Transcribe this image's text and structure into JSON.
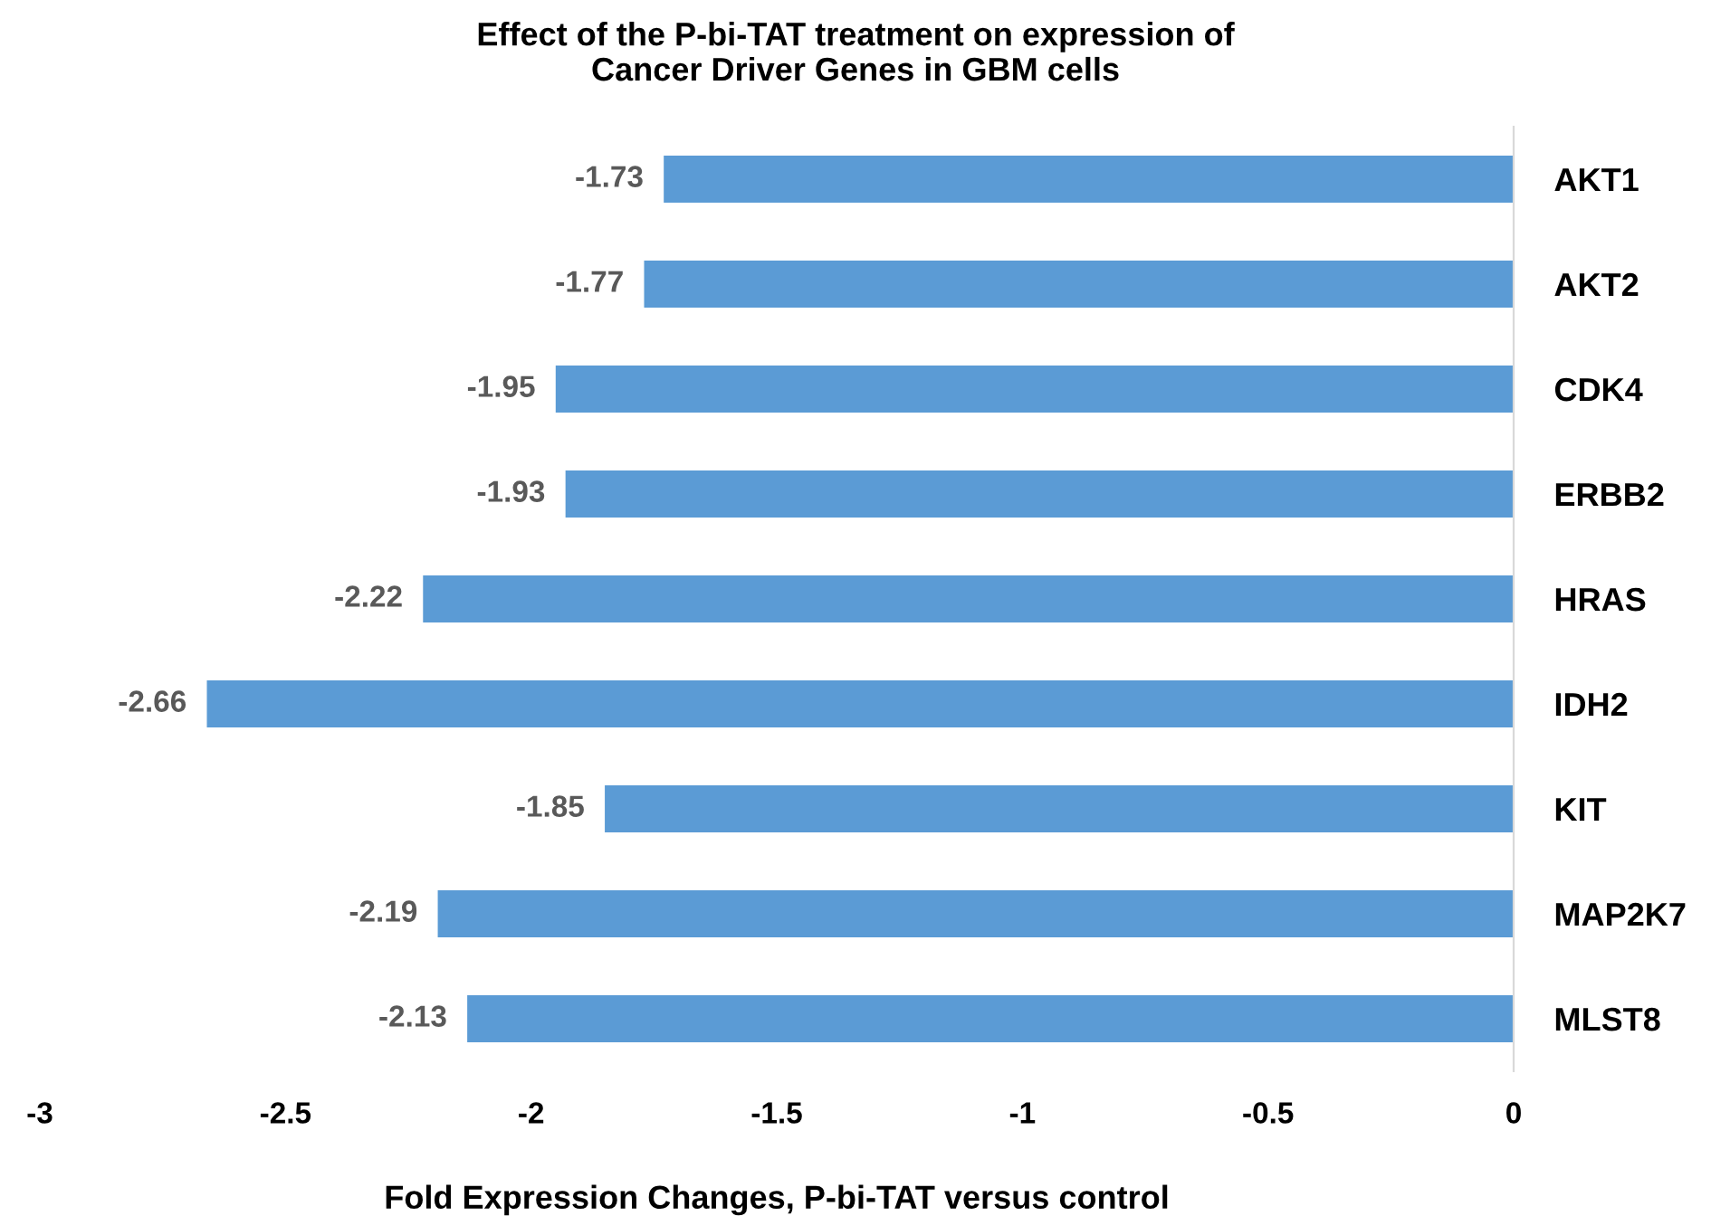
{
  "chart_data": {
    "type": "bar",
    "orientation": "horizontal",
    "title": "Effect of the P-bi-TAT treatment on expression of\nCancer Driver Genes in GBM cells",
    "xlabel": "Fold Expression Changes, P-bi-TAT versus control",
    "categories": [
      "AKT1",
      "AKT2",
      "CDK4",
      "ERBB2",
      "HRAS",
      "IDH2",
      "KIT",
      "MAP2K7",
      "MLST8"
    ],
    "values": [
      -1.73,
      -1.77,
      -1.95,
      -1.93,
      -2.22,
      -2.66,
      -1.85,
      -2.19,
      -2.13
    ],
    "color": "#5b9bd5",
    "data_labels": true,
    "grid": false,
    "legend": false,
    "xlim": [
      -3,
      0
    ],
    "xticks": [
      -3,
      -2.5,
      -2,
      -1.5,
      -1,
      -0.5,
      0
    ]
  }
}
